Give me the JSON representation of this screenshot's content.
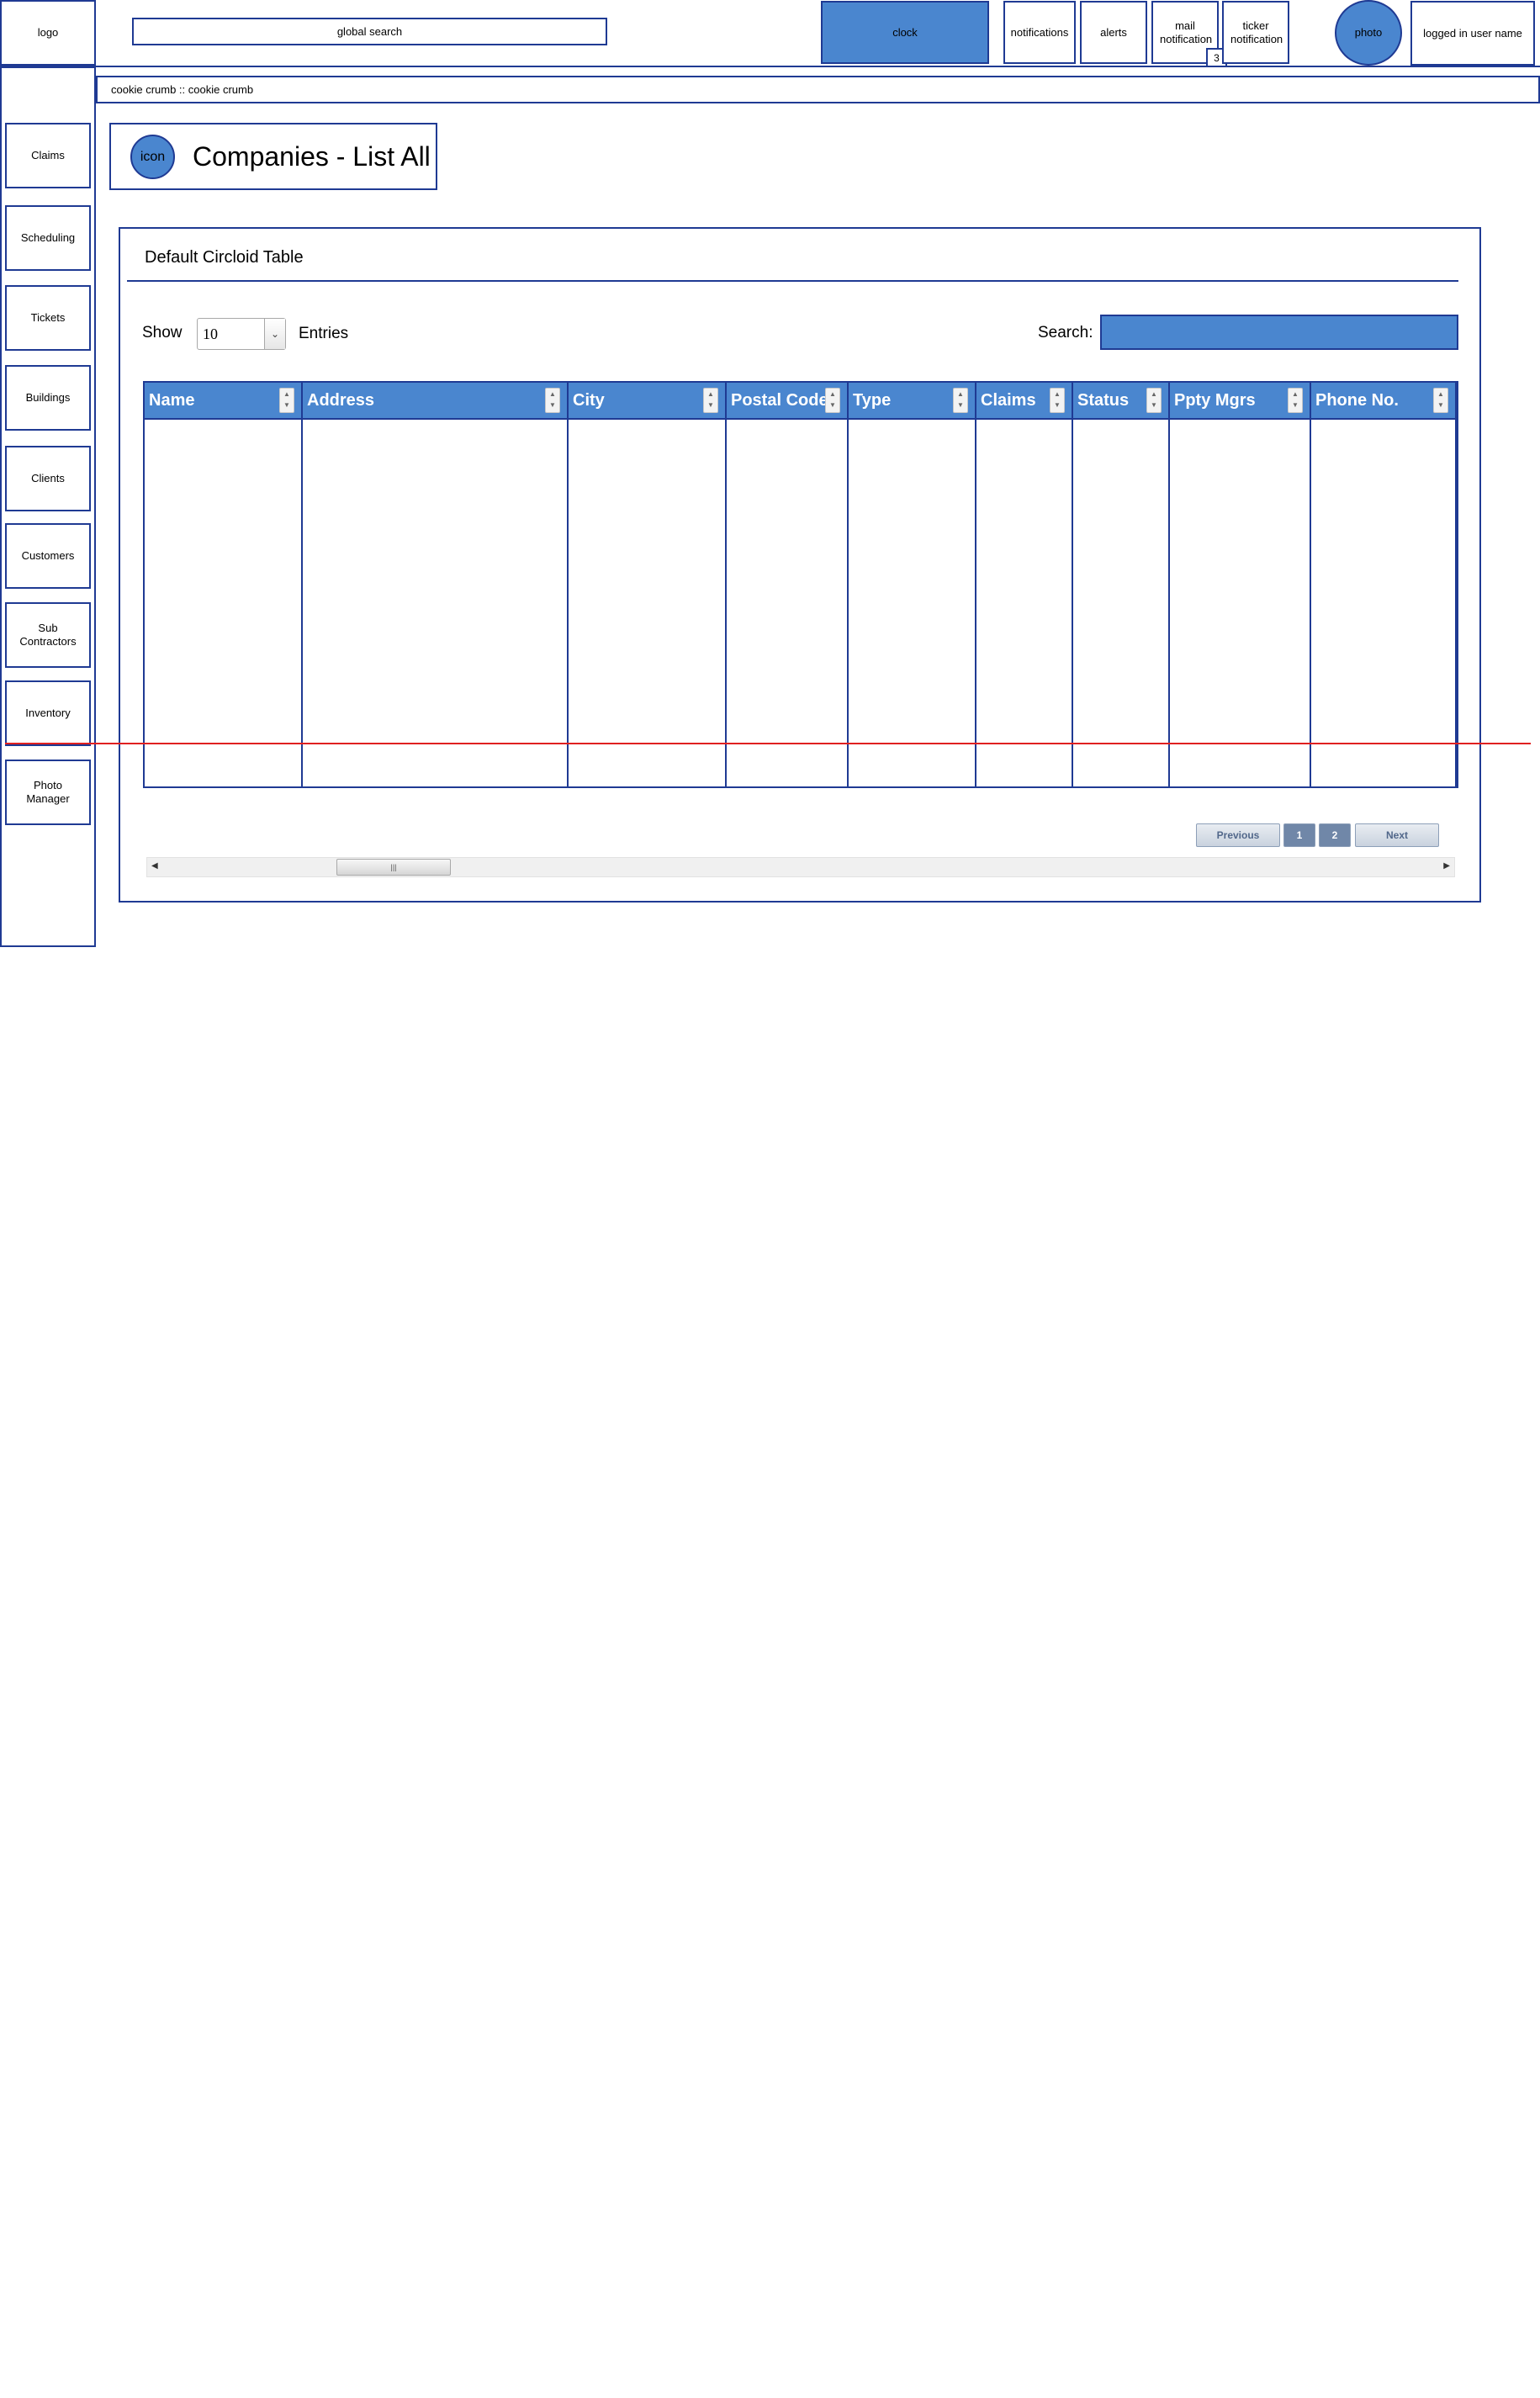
{
  "header": {
    "logo": "logo",
    "global_search": "global search",
    "clock": "clock",
    "notifications": "notifications",
    "alerts": "alerts",
    "mail_notification": "mail notification",
    "mail_count": "3",
    "ticker_notification": "ticker notification",
    "photo": "photo",
    "user_name": "logged in user name"
  },
  "sidebar": {
    "items": [
      {
        "label": "Claims"
      },
      {
        "label": "Scheduling"
      },
      {
        "label": "Tickets"
      },
      {
        "label": "Buildings"
      },
      {
        "label": "Clients"
      },
      {
        "label": "Customers"
      },
      {
        "label": "Sub Contractors"
      },
      {
        "label": "Inventory"
      },
      {
        "label": "Photo Manager"
      }
    ]
  },
  "breadcrumb": "cookie crumb :: cookie crumb",
  "page": {
    "icon_label": "icon",
    "title": "Companies - List All"
  },
  "table_panel": {
    "title": "Default Circloid Table",
    "show_label": "Show",
    "entries_value": "10",
    "entries_label": "Entries",
    "search_label": "Search:",
    "search_value": "",
    "columns": [
      "Name",
      "Address",
      "City",
      "Postal Code",
      "Type",
      "Claims",
      "Status",
      "Ppty Mgrs",
      "Phone No."
    ],
    "rows": []
  },
  "pagination": {
    "previous": "Previous",
    "pages": [
      "1",
      "2"
    ],
    "next": "Next"
  },
  "colors": {
    "border": "#1f3a93",
    "accent": "#4a86cf",
    "guide_line": "#e02020"
  }
}
